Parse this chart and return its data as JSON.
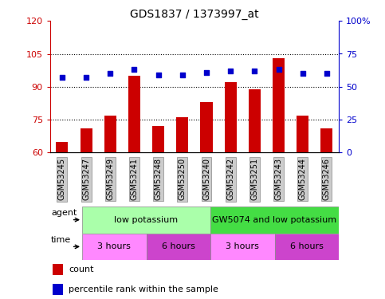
{
  "title": "GDS1837 / 1373997_at",
  "categories": [
    "GSM53245",
    "GSM53247",
    "GSM53249",
    "GSM53241",
    "GSM53248",
    "GSM53250",
    "GSM53240",
    "GSM53242",
    "GSM53251",
    "GSM53243",
    "GSM53244",
    "GSM53246"
  ],
  "bar_values": [
    65,
    71,
    77,
    95,
    72,
    76,
    83,
    92,
    89,
    103,
    77,
    71
  ],
  "percentile_values": [
    57,
    57,
    60,
    63,
    59,
    59,
    61,
    62,
    62,
    63,
    60,
    60
  ],
  "bar_color": "#cc0000",
  "dot_color": "#0000cc",
  "ylim_left": [
    60,
    120
  ],
  "ylim_right": [
    0,
    100
  ],
  "yticks_left": [
    60,
    75,
    90,
    105,
    120
  ],
  "yticks_right": [
    0,
    25,
    50,
    75,
    100
  ],
  "ytick_labels_left": [
    "60",
    "75",
    "90",
    "105",
    "120"
  ],
  "ytick_labels_right": [
    "0",
    "25",
    "50",
    "75",
    "100%"
  ],
  "grid_values": [
    75,
    90,
    105
  ],
  "agent_labels": [
    {
      "text": "low potassium",
      "start": 0,
      "end": 6,
      "color": "#aaffaa"
    },
    {
      "text": "GW5074 and low potassium",
      "start": 6,
      "end": 12,
      "color": "#44dd44"
    }
  ],
  "time_labels": [
    {
      "text": "3 hours",
      "start": 0,
      "end": 3,
      "color": "#ff88ff"
    },
    {
      "text": "6 hours",
      "start": 3,
      "end": 6,
      "color": "#cc44cc"
    },
    {
      "text": "3 hours",
      "start": 6,
      "end": 9,
      "color": "#ff88ff"
    },
    {
      "text": "6 hours",
      "start": 9,
      "end": 12,
      "color": "#cc44cc"
    }
  ],
  "legend_count_color": "#cc0000",
  "legend_dot_color": "#0000cc",
  "tick_label_bg": "#cccccc",
  "bar_width": 0.5,
  "figsize": [
    4.83,
    3.75
  ],
  "dpi": 100
}
